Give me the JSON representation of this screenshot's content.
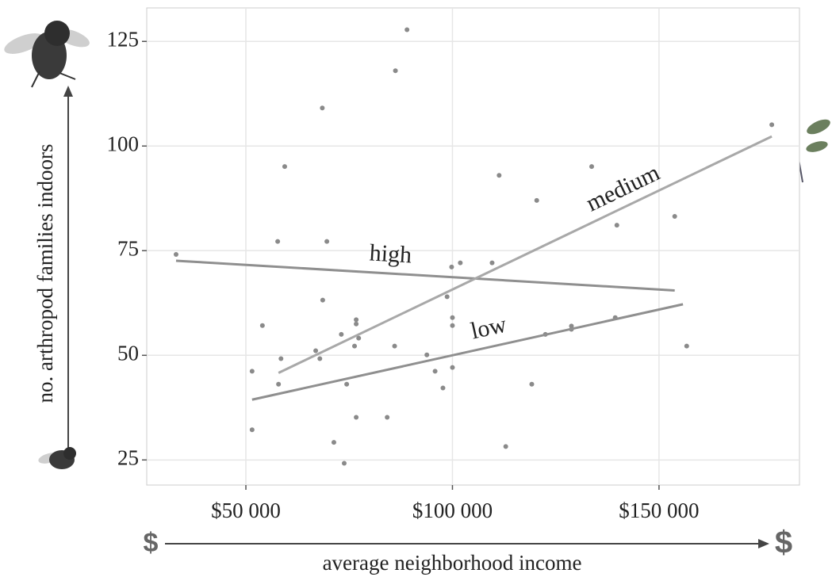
{
  "chart_data": {
    "type": "scatter",
    "x_label": "average neighborhood income",
    "y_label": "no. arthropod families indoors",
    "x_arrow_labels": [
      "$",
      "$"
    ],
    "xlim": [
      26000,
      184000
    ],
    "ylim": [
      19,
      133
    ],
    "xticks": [
      {
        "value": 50000,
        "label": "$50 000"
      },
      {
        "value": 100000,
        "label": "$100 000"
      },
      {
        "value": 150000,
        "label": "$150 000"
      }
    ],
    "yticks": [
      25,
      50,
      75,
      100,
      125
    ],
    "grid": true,
    "points": {
      "color": "#8a8a8a",
      "x": [
        33100,
        89000,
        86200,
        68500,
        59400,
        177300,
        133700,
        153800,
        120400,
        111300,
        139800,
        57700,
        69600,
        101900,
        99800,
        109600,
        68600,
        98700,
        54000,
        76700,
        100000,
        100000,
        76700,
        139400,
        128800,
        128800,
        122500,
        73100,
        77300,
        76300,
        86000,
        156700,
        66900,
        93800,
        58500,
        67900,
        100000,
        95800,
        51500,
        57900,
        74400,
        97700,
        119200,
        76700,
        84200,
        51500,
        71300,
        112900,
        73800
      ],
      "values": [
        74.1,
        127.8,
        118,
        109.1,
        95.1,
        105.1,
        95.1,
        83.2,
        87,
        93,
        81.1,
        77.2,
        77.2,
        72.1,
        71.1,
        72.1,
        63.2,
        64,
        57.1,
        58.5,
        59,
        57.1,
        57.5,
        59,
        57,
        56.2,
        55,
        55,
        54.1,
        52.2,
        52.2,
        52.2,
        51.1,
        50.1,
        49.2,
        49.2,
        47.1,
        46.2,
        46.2,
        43.1,
        43.1,
        42.2,
        43.1,
        35.2,
        35.2,
        32.2,
        29.2,
        28.2,
        24.2
      ]
    },
    "trend_lines": [
      {
        "name": "high",
        "color": "#8f8f8f",
        "x": [
          33100,
          153800
        ],
        "values": [
          72.6,
          65.5
        ]
      },
      {
        "name": "medium",
        "color": "#a8a8a8",
        "x": [
          57900,
          177300
        ],
        "values": [
          45.8,
          102.3
        ]
      },
      {
        "name": "low",
        "color": "#8f8f8f",
        "x": [
          51500,
          155800
        ],
        "values": [
          39.4,
          62.2
        ]
      }
    ]
  }
}
